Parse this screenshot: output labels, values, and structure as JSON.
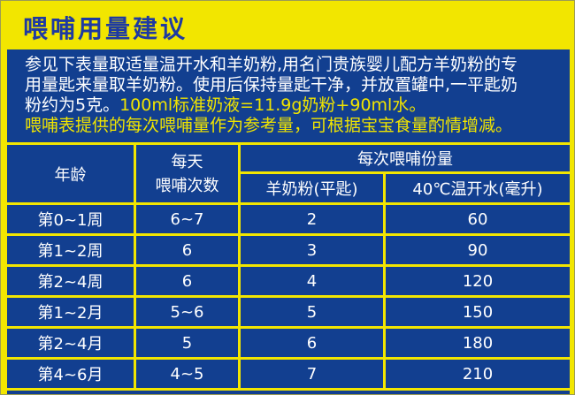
{
  "page": {
    "title": "喂哺用量建议"
  },
  "intro": {
    "line1": "参见下表量取适量温开水和羊奶粉,用名门贵族婴儿配方羊奶粉的专",
    "line2": "用量匙来量取羊奶粉。使用后保持量匙干净，并放置罐中,一平匙奶",
    "line3_white": "粉约为5克。",
    "line3_yellow": "100ml标准奶液=11.9g奶粉+90ml水。",
    "line4": "喂哺表提供的每次喂哺量作为参考量，可根据宝宝食量酌情增减。"
  },
  "table": {
    "headers": {
      "age": "年龄",
      "daily_line1": "每天",
      "daily_line2": "喂哺次数",
      "per_feed": "每次喂哺份量",
      "powder": "羊奶粉(平匙)",
      "water": "40℃温开水(毫升)"
    },
    "rows": [
      {
        "age": "第0~1周",
        "times": "6~7",
        "powder": "2",
        "water": "60"
      },
      {
        "age": "第1~2周",
        "times": "6",
        "powder": "3",
        "water": "90"
      },
      {
        "age": "第2~4周",
        "times": "6",
        "powder": "4",
        "water": "120"
      },
      {
        "age": "第1~2月",
        "times": "5~6",
        "powder": "5",
        "water": "150"
      },
      {
        "age": "第2~4月",
        "times": "5",
        "powder": "6",
        "water": "180"
      },
      {
        "age": "第4~6月",
        "times": "4~5",
        "powder": "7",
        "water": "210"
      }
    ]
  },
  "colors": {
    "background_yellow": "#F2E600",
    "panel_blue": "#123F90",
    "title_blue": "#1E3AA2",
    "highlight_yellow_text": "#F0E400",
    "body_text_white": "#FFFFFF"
  },
  "chart_data": {
    "type": "table",
    "title": "喂哺用量建议",
    "columns": [
      "年龄",
      "每天喂哺次数",
      "羊奶粉(平匙)",
      "40℃温开水(毫升)"
    ],
    "rows": [
      [
        "第0~1周",
        "6~7",
        2,
        60
      ],
      [
        "第1~2周",
        "6",
        3,
        90
      ],
      [
        "第2~4周",
        "6",
        4,
        120
      ],
      [
        "第1~2月",
        "5~6",
        5,
        150
      ],
      [
        "第2~4月",
        "5",
        6,
        180
      ],
      [
        "第4~6月",
        "4~5",
        7,
        210
      ]
    ]
  }
}
